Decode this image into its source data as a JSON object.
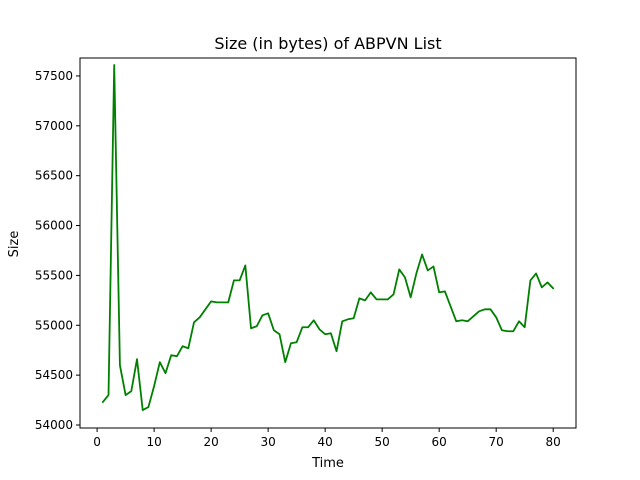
{
  "chart_data": {
    "type": "line",
    "title": "Size (in bytes) of ABPVN List",
    "xlabel": "Time",
    "ylabel": "Size",
    "xlim": [
      -3,
      84
    ],
    "ylim": [
      53970,
      57680
    ],
    "xticks": [
      0,
      10,
      20,
      30,
      40,
      50,
      60,
      70,
      80
    ],
    "yticks": [
      54000,
      54500,
      55000,
      55500,
      56000,
      56500,
      57000,
      57500
    ],
    "grid": false,
    "series": [
      {
        "color": "#008000",
        "x": [
          1,
          2,
          3,
          4,
          5,
          6,
          7,
          8,
          9,
          10,
          11,
          12,
          13,
          14,
          15,
          16,
          17,
          18,
          19,
          20,
          21,
          22,
          23,
          24,
          25,
          26,
          27,
          28,
          29,
          30,
          31,
          32,
          33,
          34,
          35,
          36,
          37,
          38,
          39,
          40,
          41,
          42,
          43,
          44,
          45,
          46,
          47,
          48,
          49,
          50,
          51,
          52,
          53,
          54,
          55,
          56,
          57,
          58,
          59,
          60,
          61,
          62,
          63,
          64,
          65,
          66,
          67,
          68,
          69,
          70,
          71,
          72,
          73,
          74,
          75,
          76,
          77,
          78,
          79,
          80
        ],
        "y": [
          54230,
          54300,
          57610,
          54600,
          54300,
          54340,
          54660,
          54150,
          54180,
          54390,
          54630,
          54520,
          54700,
          54690,
          54790,
          54770,
          55030,
          55080,
          55160,
          55240,
          55230,
          55230,
          55230,
          55450,
          55450,
          55600,
          54970,
          54990,
          55100,
          55120,
          54950,
          54910,
          54630,
          54820,
          54830,
          54980,
          54980,
          55050,
          54960,
          54910,
          54920,
          54740,
          55040,
          55060,
          55070,
          55270,
          55250,
          55330,
          55260,
          55260,
          55260,
          55310,
          55560,
          55480,
          55280,
          55520,
          55710,
          55550,
          55590,
          55330,
          55340,
          55190,
          55040,
          55050,
          55040,
          55090,
          55140,
          55160,
          55160,
          55080,
          54950,
          54940,
          54940,
          55040,
          54980,
          55450,
          55520,
          55380,
          55430,
          55370
        ]
      }
    ]
  }
}
